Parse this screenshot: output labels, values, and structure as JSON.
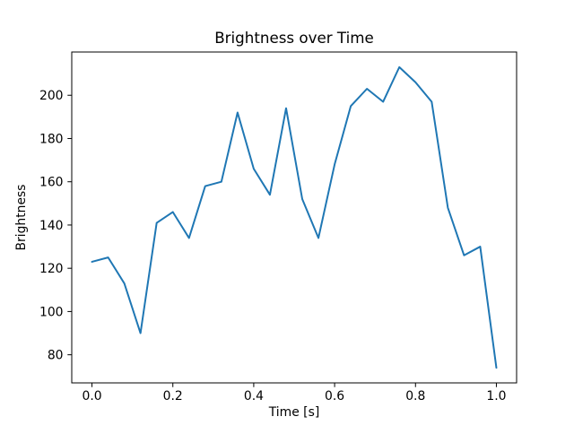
{
  "chart_data": {
    "type": "line",
    "title": "Brightness over Time",
    "xlabel": "Time [s]",
    "ylabel": "Brightness",
    "x": [
      0.0,
      0.04,
      0.08,
      0.12,
      0.16,
      0.2,
      0.24,
      0.28,
      0.32,
      0.36,
      0.4,
      0.44,
      0.48,
      0.52,
      0.56,
      0.6,
      0.64,
      0.68,
      0.72,
      0.76,
      0.8,
      0.84,
      0.88,
      0.92,
      0.96,
      1.0
    ],
    "y": [
      123,
      125,
      113,
      90,
      141,
      146,
      134,
      158,
      160,
      192,
      166,
      154,
      194,
      152,
      134,
      168,
      195,
      203,
      197,
      213,
      206,
      197,
      148,
      126,
      130,
      74
    ],
    "xlim": [
      -0.05,
      1.05
    ],
    "ylim": [
      67,
      220
    ],
    "xticks": [
      0.0,
      0.2,
      0.4,
      0.6,
      0.8,
      1.0
    ],
    "xtick_labels": [
      "0.0",
      "0.2",
      "0.4",
      "0.6",
      "0.8",
      "1.0"
    ],
    "yticks": [
      80,
      100,
      120,
      140,
      160,
      180,
      200
    ],
    "ytick_labels": [
      "80",
      "100",
      "120",
      "140",
      "160",
      "180",
      "200"
    ],
    "line_color": "#1f77b4",
    "axis_color": "#000000",
    "background_color": "#ffffff",
    "grid": "off",
    "legend": "none"
  }
}
